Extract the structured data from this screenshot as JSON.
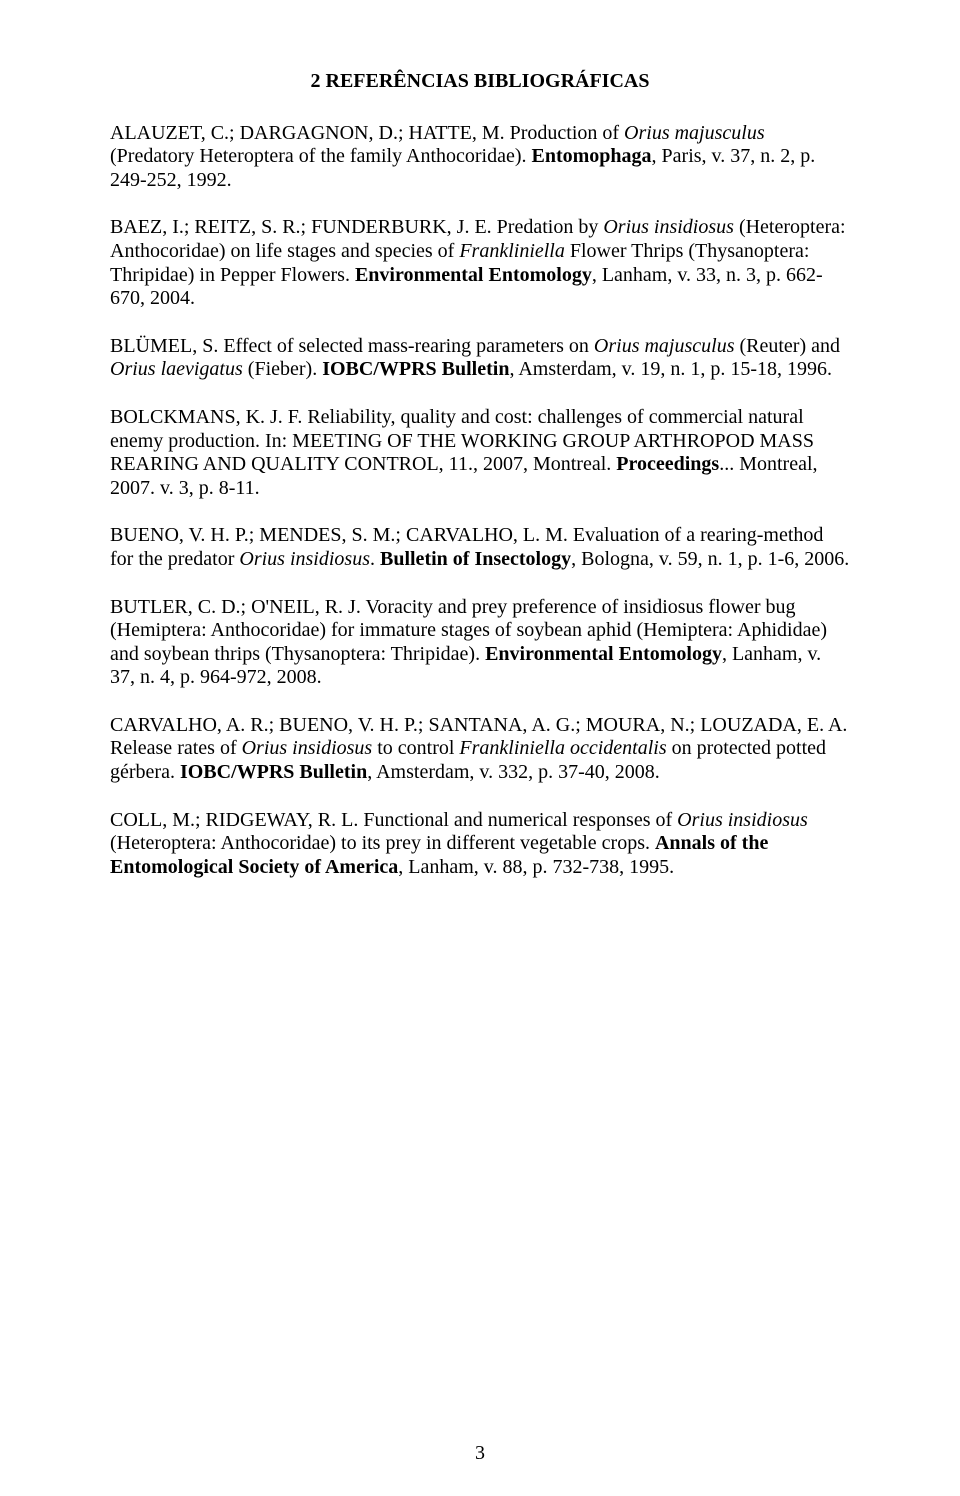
{
  "title": "2 REFERÊNCIAS BIBLIOGRÁFICAS",
  "page_number": "3",
  "refs": [
    {
      "parts": [
        {
          "t": "ALAUZET, C.; DARGAGNON, D.; HATTE, M. Production of ",
          "s": ""
        },
        {
          "t": "Orius majusculus",
          "s": "italic"
        },
        {
          "t": " (Predatory Heteroptera of the family Anthocoridae). ",
          "s": ""
        },
        {
          "t": "Entomophaga",
          "s": "bold"
        },
        {
          "t": ", Paris, v. 37, n. 2, p. 249-252, 1992.",
          "s": ""
        }
      ]
    },
    {
      "parts": [
        {
          "t": "BAEZ, I.; REITZ, S. R.; FUNDERBURK, J. E. Predation by ",
          "s": ""
        },
        {
          "t": "Orius insidiosus",
          "s": "italic"
        },
        {
          "t": " (Heteroptera: Anthocoridae) on life stages and species of ",
          "s": ""
        },
        {
          "t": "Frankliniella",
          "s": "italic"
        },
        {
          "t": " Flower Thrips (Thysanoptera: Thripidae) in Pepper Flowers. ",
          "s": ""
        },
        {
          "t": "Environmental Entomology",
          "s": "bold"
        },
        {
          "t": ", Lanham, v. 33, n. 3, p. 662-670, 2004.",
          "s": ""
        }
      ]
    },
    {
      "parts": [
        {
          "t": "BLÜMEL, S. Effect of selected mass-rearing parameters on ",
          "s": ""
        },
        {
          "t": "Orius majusculus",
          "s": "italic"
        },
        {
          "t": " (Reuter) and ",
          "s": ""
        },
        {
          "t": "Orius laevigatus",
          "s": "italic"
        },
        {
          "t": " (Fieber). ",
          "s": ""
        },
        {
          "t": "IOBC/WPRS Bulletin",
          "s": "bold"
        },
        {
          "t": ", Amsterdam, v. 19, n. 1, p. 15-18, 1996.",
          "s": ""
        }
      ]
    },
    {
      "parts": [
        {
          "t": "BOLCKMANS, K. J. F. Reliability, quality and cost: challenges of commercial natural enemy production. In: MEETING OF THE WORKING GROUP ARTHROPOD MASS REARING AND QUALITY CONTROL, 11., 2007, Montreal. ",
          "s": ""
        },
        {
          "t": "Proceedings",
          "s": "bold"
        },
        {
          "t": "... Montreal, 2007. v. 3, p. 8-11.",
          "s": ""
        }
      ]
    },
    {
      "parts": [
        {
          "t": "BUENO, V. H. P.; MENDES, S. M.; CARVALHO, L. M. Evaluation of a rearing-method for the predator ",
          "s": ""
        },
        {
          "t": "Orius insidiosus",
          "s": "italic"
        },
        {
          "t": ". ",
          "s": ""
        },
        {
          "t": "Bulletin of Insectology",
          "s": "bold"
        },
        {
          "t": ", Bologna, v. 59, n. 1, p. 1-6, 2006.",
          "s": ""
        }
      ]
    },
    {
      "parts": [
        {
          "t": "BUTLER, C. D.; O'NEIL, R. J. Voracity and prey preference of insidiosus flower bug (Hemiptera: Anthocoridae) for immature stages of soybean aphid (Hemiptera: Aphididae) and soybean thrips (Thysanoptera: Thripidae). ",
          "s": ""
        },
        {
          "t": "Environmental Entomology",
          "s": "bold"
        },
        {
          "t": ", Lanham, v. 37, n. 4, p. 964-972, 2008.",
          "s": ""
        }
      ]
    },
    {
      "parts": [
        {
          "t": "CARVALHO, A. R.; BUENO, V. H. P.; SANTANA, A. G.; MOURA, N.; LOUZADA, E. A. Release rates of ",
          "s": ""
        },
        {
          "t": "Orius insidiosus",
          "s": "italic"
        },
        {
          "t": " to control ",
          "s": ""
        },
        {
          "t": "Frankliniella occidentalis",
          "s": "italic"
        },
        {
          "t": " on protected potted gérbera. ",
          "s": ""
        },
        {
          "t": "IOBC/WPRS Bulletin",
          "s": "bold"
        },
        {
          "t": ", Amsterdam, v. 332, p. 37-40, 2008.",
          "s": ""
        }
      ]
    },
    {
      "parts": [
        {
          "t": "COLL, M.; RIDGEWAY, R. L. Functional and numerical responses of ",
          "s": ""
        },
        {
          "t": "Orius insidiosus",
          "s": "italic"
        },
        {
          "t": " (Heteroptera: Anthocoridae) to its prey in different vegetable crops. ",
          "s": ""
        },
        {
          "t": "Annals of the Entomological Society of America",
          "s": "bold"
        },
        {
          "t": ", Lanham, v. 88, p. 732-738, 1995.",
          "s": ""
        }
      ]
    }
  ]
}
